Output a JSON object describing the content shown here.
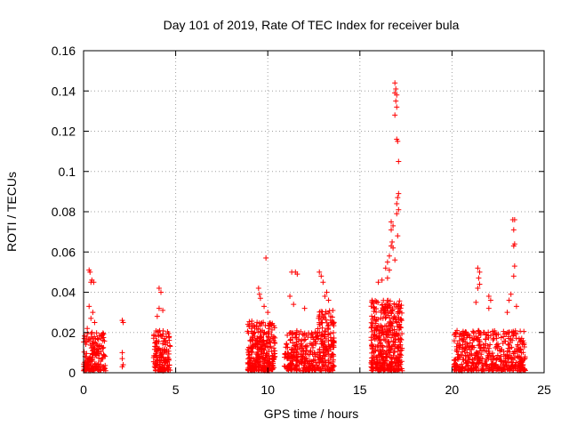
{
  "chart_data": {
    "type": "scatter",
    "title": "Day 101 of 2019, Rate Of TEC Index for receiver bula",
    "xlabel": "GPS time / hours",
    "ylabel": "ROTI / TECUs",
    "xlim": [
      0,
      25
    ],
    "ylim": [
      0,
      0.16
    ],
    "grid": true,
    "marker": "+",
    "color": "#ff0000",
    "x_ticks": [
      0,
      5,
      10,
      15,
      20,
      25
    ],
    "x_tick_labels": [
      "0",
      "5",
      "10",
      "15",
      "20",
      "25"
    ],
    "y_ticks": [
      0,
      0.02,
      0.04,
      0.06,
      0.08,
      0.1,
      0.12,
      0.14,
      0.16
    ],
    "y_tick_labels": [
      "0",
      "0.02",
      "0.04",
      "0.06",
      "0.08",
      "0.1",
      "0.12",
      "0.14",
      "0.16"
    ],
    "clusters": [
      {
        "x": [
          0.0,
          1.2
        ],
        "typical_max": 0.02,
        "count": 160
      },
      {
        "x": [
          3.8,
          4.7
        ],
        "typical_max": 0.02,
        "count": 140
      },
      {
        "x": [
          8.9,
          10.4
        ],
        "typical_max": 0.025,
        "count": 300
      },
      {
        "x": [
          10.9,
          12.7
        ],
        "typical_max": 0.02,
        "count": 240
      },
      {
        "x": [
          12.7,
          13.6
        ],
        "typical_max": 0.03,
        "count": 170
      },
      {
        "x": [
          15.6,
          17.3
        ],
        "typical_max": 0.035,
        "count": 420
      },
      {
        "x": [
          20.1,
          24.0
        ],
        "typical_max": 0.02,
        "count": 480
      }
    ],
    "points": [
      {
        "x": 0.3,
        "y": 0.051
      },
      {
        "x": 0.35,
        "y": 0.05
      },
      {
        "x": 0.45,
        "y": 0.046
      },
      {
        "x": 0.4,
        "y": 0.045
      },
      {
        "x": 0.55,
        "y": 0.045
      },
      {
        "x": 0.3,
        "y": 0.033
      },
      {
        "x": 0.5,
        "y": 0.03
      },
      {
        "x": 0.4,
        "y": 0.027
      },
      {
        "x": 0.6,
        "y": 0.025
      },
      {
        "x": 0.2,
        "y": 0.022
      },
      {
        "x": 2.1,
        "y": 0.026
      },
      {
        "x": 2.15,
        "y": 0.025
      },
      {
        "x": 2.1,
        "y": 0.01
      },
      {
        "x": 2.1,
        "y": 0.007
      },
      {
        "x": 2.15,
        "y": 0.004
      },
      {
        "x": 2.1,
        "y": 0.003
      },
      {
        "x": 4.1,
        "y": 0.042
      },
      {
        "x": 4.2,
        "y": 0.04
      },
      {
        "x": 4.1,
        "y": 0.032
      },
      {
        "x": 4.3,
        "y": 0.031
      },
      {
        "x": 4.0,
        "y": 0.028
      },
      {
        "x": 9.5,
        "y": 0.042
      },
      {
        "x": 9.55,
        "y": 0.039
      },
      {
        "x": 9.6,
        "y": 0.037
      },
      {
        "x": 9.9,
        "y": 0.057
      },
      {
        "x": 9.8,
        "y": 0.033
      },
      {
        "x": 10.0,
        "y": 0.03
      },
      {
        "x": 11.3,
        "y": 0.05
      },
      {
        "x": 11.5,
        "y": 0.05
      },
      {
        "x": 11.6,
        "y": 0.049
      },
      {
        "x": 11.2,
        "y": 0.038
      },
      {
        "x": 11.4,
        "y": 0.034
      },
      {
        "x": 12.0,
        "y": 0.032
      },
      {
        "x": 12.8,
        "y": 0.05
      },
      {
        "x": 12.9,
        "y": 0.048
      },
      {
        "x": 13.0,
        "y": 0.045
      },
      {
        "x": 13.2,
        "y": 0.04
      },
      {
        "x": 13.3,
        "y": 0.036
      },
      {
        "x": 13.1,
        "y": 0.038
      },
      {
        "x": 16.9,
        "y": 0.144
      },
      {
        "x": 16.95,
        "y": 0.141
      },
      {
        "x": 16.9,
        "y": 0.139
      },
      {
        "x": 17.0,
        "y": 0.138
      },
      {
        "x": 16.95,
        "y": 0.135
      },
      {
        "x": 17.0,
        "y": 0.132
      },
      {
        "x": 16.9,
        "y": 0.128
      },
      {
        "x": 17.0,
        "y": 0.116
      },
      {
        "x": 17.05,
        "y": 0.115
      },
      {
        "x": 17.1,
        "y": 0.105
      },
      {
        "x": 17.1,
        "y": 0.089
      },
      {
        "x": 17.05,
        "y": 0.087
      },
      {
        "x": 17.0,
        "y": 0.084
      },
      {
        "x": 17.1,
        "y": 0.081
      },
      {
        "x": 17.0,
        "y": 0.079
      },
      {
        "x": 16.7,
        "y": 0.075
      },
      {
        "x": 16.8,
        "y": 0.073
      },
      {
        "x": 16.7,
        "y": 0.071
      },
      {
        "x": 16.75,
        "y": 0.065
      },
      {
        "x": 16.7,
        "y": 0.063
      },
      {
        "x": 16.8,
        "y": 0.062
      },
      {
        "x": 17.05,
        "y": 0.068
      },
      {
        "x": 16.6,
        "y": 0.058
      },
      {
        "x": 16.5,
        "y": 0.055
      },
      {
        "x": 16.9,
        "y": 0.056
      },
      {
        "x": 16.4,
        "y": 0.052
      },
      {
        "x": 16.6,
        "y": 0.051
      },
      {
        "x": 16.2,
        "y": 0.046
      },
      {
        "x": 16.0,
        "y": 0.045
      },
      {
        "x": 16.5,
        "y": 0.047
      },
      {
        "x": 21.4,
        "y": 0.052
      },
      {
        "x": 21.5,
        "y": 0.05
      },
      {
        "x": 21.45,
        "y": 0.047
      },
      {
        "x": 21.5,
        "y": 0.044
      },
      {
        "x": 21.4,
        "y": 0.042
      },
      {
        "x": 21.3,
        "y": 0.035
      },
      {
        "x": 22.0,
        "y": 0.038
      },
      {
        "x": 22.1,
        "y": 0.036
      },
      {
        "x": 22.0,
        "y": 0.032
      },
      {
        "x": 23.3,
        "y": 0.076
      },
      {
        "x": 23.4,
        "y": 0.076
      },
      {
        "x": 23.35,
        "y": 0.071
      },
      {
        "x": 23.4,
        "y": 0.064
      },
      {
        "x": 23.35,
        "y": 0.063
      },
      {
        "x": 23.4,
        "y": 0.053
      },
      {
        "x": 23.35,
        "y": 0.048
      },
      {
        "x": 23.2,
        "y": 0.039
      },
      {
        "x": 23.1,
        "y": 0.036
      },
      {
        "x": 23.5,
        "y": 0.033
      },
      {
        "x": 23.0,
        "y": 0.03
      }
    ]
  }
}
